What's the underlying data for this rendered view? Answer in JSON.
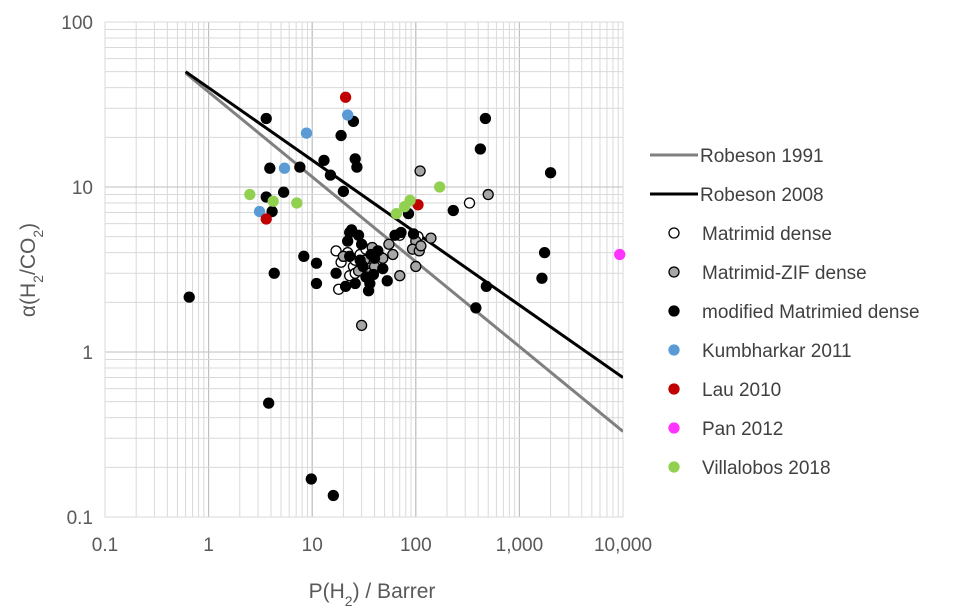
{
  "chart_data": {
    "type": "scatter",
    "title": "",
    "xlabel": {
      "main": "P(H",
      "sub": "2",
      "rest": ") / Barrer"
    },
    "ylabel": {
      "main": "α(H",
      "sub1": "2",
      "mid": "/CO",
      "sub2": "2",
      "rest": ")"
    },
    "x_scale": "log",
    "y_scale": "log",
    "xlim": [
      0.1,
      10000
    ],
    "ylim": [
      0.1,
      100
    ],
    "x_ticks": [
      0.1,
      1,
      10,
      100,
      1000,
      10000
    ],
    "x_tick_labels": [
      "0.1",
      "1",
      "10",
      "100",
      "1,000",
      "10,000"
    ],
    "y_ticks": [
      0.1,
      1,
      10,
      100
    ],
    "y_tick_labels": [
      "0.1",
      "1",
      "10",
      "100"
    ],
    "grid": true,
    "legend_position": "right",
    "lines": [
      {
        "name": "Robeson 1991",
        "color": "#808080",
        "points": [
          [
            0.6,
            49
          ],
          [
            10000,
            0.33
          ]
        ]
      },
      {
        "name": "Robeson 2008",
        "color": "#000000",
        "points": [
          [
            0.6,
            50
          ],
          [
            10000,
            0.7
          ]
        ]
      }
    ],
    "series": [
      {
        "name": "Matrimid dense",
        "fill": "#ffffff",
        "stroke": "#000000",
        "points": [
          [
            17,
            4.1
          ],
          [
            19,
            3.5
          ],
          [
            20,
            3.8
          ],
          [
            22,
            4.0
          ],
          [
            25,
            3.3
          ],
          [
            26,
            3.6
          ],
          [
            29,
            3.9
          ],
          [
            31,
            3.1
          ],
          [
            33,
            4.2
          ],
          [
            36,
            3.7
          ],
          [
            23,
            2.9
          ],
          [
            18,
            2.4
          ],
          [
            70,
            5.1
          ],
          [
            105,
            5.0
          ],
          [
            330,
            8.0
          ],
          [
            26,
            3.0
          ]
        ]
      },
      {
        "name": "Matrimid-ZIF dense",
        "fill": "#a6a6a6",
        "stroke": "#000000",
        "points": [
          [
            110,
            12.5
          ],
          [
            500,
            9.0
          ],
          [
            140,
            4.9
          ],
          [
            100,
            4.7
          ],
          [
            93,
            4.2
          ],
          [
            108,
            4.1
          ],
          [
            100,
            3.3
          ],
          [
            70,
            2.9
          ],
          [
            55,
            4.5
          ],
          [
            45,
            3.8
          ],
          [
            38,
            4.3
          ],
          [
            30,
            1.45
          ],
          [
            28,
            3.1
          ],
          [
            32,
            3.6
          ],
          [
            35,
            3.0
          ],
          [
            40,
            3.3
          ],
          [
            48,
            3.7
          ],
          [
            60,
            3.9
          ],
          [
            112,
            4.4
          ],
          [
            20,
            3.8
          ]
        ]
      },
      {
        "name": "modified Matrimied dense",
        "fill": "#000000",
        "stroke": "#000000",
        "points": [
          [
            0.65,
            2.15
          ],
          [
            3.6,
            26
          ],
          [
            3.9,
            13
          ],
          [
            3.6,
            8.7
          ],
          [
            4.1,
            7.1
          ],
          [
            4.3,
            3.0
          ],
          [
            5.3,
            9.3
          ],
          [
            7.6,
            13.2
          ],
          [
            8.3,
            3.8
          ],
          [
            11,
            3.45
          ],
          [
            11,
            2.6
          ],
          [
            13,
            14.5
          ],
          [
            15,
            11.8
          ],
          [
            17,
            3.0
          ],
          [
            19,
            20.5
          ],
          [
            20,
            9.4
          ],
          [
            21,
            2.5
          ],
          [
            22,
            4.7
          ],
          [
            23,
            5.3
          ],
          [
            24,
            5.5
          ],
          [
            25,
            25
          ],
          [
            26,
            14.8
          ],
          [
            27,
            13.2
          ],
          [
            28,
            5.1
          ],
          [
            29,
            3.6
          ],
          [
            30,
            4.5
          ],
          [
            31,
            3.3
          ],
          [
            33,
            2.85
          ],
          [
            35,
            2.35
          ],
          [
            37,
            3.9
          ],
          [
            39,
            2.95
          ],
          [
            43,
            4.1
          ],
          [
            48,
            3.2
          ],
          [
            53,
            2.7
          ],
          [
            63,
            5.1
          ],
          [
            72,
            5.3
          ],
          [
            85,
            6.9
          ],
          [
            95,
            5.2
          ],
          [
            230,
            7.2
          ],
          [
            380,
            1.85
          ],
          [
            420,
            17
          ],
          [
            470,
            26
          ],
          [
            480,
            2.5
          ],
          [
            1650,
            2.8
          ],
          [
            1750,
            4.0
          ],
          [
            2000,
            12.2
          ],
          [
            3.8,
            0.49
          ],
          [
            9.8,
            0.17
          ],
          [
            16,
            0.135
          ],
          [
            23,
            3.8
          ],
          [
            26,
            2.6
          ],
          [
            36,
            2.6
          ],
          [
            40,
            3.7
          ]
        ]
      },
      {
        "name": "Kumbharkar 2011",
        "fill": "#5b9bd5",
        "stroke": "#5b9bd5",
        "points": [
          [
            8.8,
            21.2
          ],
          [
            22,
            27.3
          ],
          [
            5.4,
            13.0
          ],
          [
            3.1,
            7.1
          ]
        ]
      },
      {
        "name": "Lau 2010",
        "fill": "#c00000",
        "stroke": "#c00000",
        "points": [
          [
            21,
            35
          ],
          [
            3.6,
            6.4
          ],
          [
            105,
            7.8
          ]
        ]
      },
      {
        "name": "Pan 2012",
        "fill": "#ff33ff",
        "stroke": "#ff33ff",
        "points": [
          [
            9300,
            3.9
          ]
        ]
      },
      {
        "name": "Villalobos 2018",
        "fill": "#92d050",
        "stroke": "#92d050",
        "points": [
          [
            2.5,
            9.0
          ],
          [
            4.2,
            8.2
          ],
          [
            7.1,
            8.0
          ],
          [
            65,
            6.9
          ],
          [
            78,
            7.6
          ],
          [
            88,
            8.3
          ],
          [
            170,
            10.0
          ]
        ]
      }
    ]
  }
}
